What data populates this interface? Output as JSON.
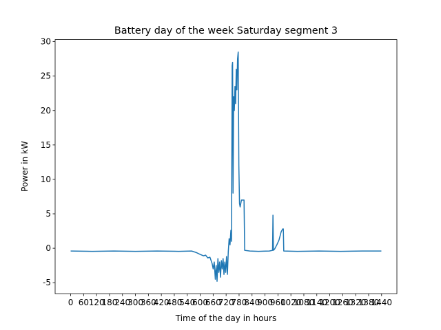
{
  "chart_data": {
    "type": "line",
    "title": "Battery day of the week Saturday segment 3",
    "x_label": "Time of the day in hours",
    "y_label": "Power in kW",
    "series": [
      {
        "color": "#1f77b4",
        "x": [
          0,
          100,
          200,
          300,
          400,
          500,
          560,
          580,
          600,
          615,
          625,
          635,
          645,
          655,
          660,
          665,
          670,
          674,
          678,
          682,
          686,
          690,
          694,
          698,
          702,
          706,
          710,
          714,
          718,
          722,
          726,
          730,
          734,
          738,
          742,
          745,
          748,
          750,
          752,
          755,
          758,
          761,
          764,
          767,
          770,
          773,
          776,
          779,
          782,
          785,
          788,
          791,
          800,
          803,
          806,
          830,
          870,
          920,
          935,
          937,
          939,
          945,
          955,
          965,
          975,
          982,
          985,
          987,
          1050,
          1150,
          1250,
          1350,
          1439
        ],
        "values": [
          -0.4,
          -0.45,
          -0.4,
          -0.45,
          -0.4,
          -0.45,
          -0.4,
          -0.6,
          -0.9,
          -1.1,
          -1.0,
          -1.4,
          -1.3,
          -2.2,
          -3.0,
          -2.0,
          -4.5,
          -2.5,
          -4.8,
          -1.5,
          -3.5,
          -2.0,
          -4.2,
          -1.8,
          -3.0,
          -1.5,
          -3.8,
          -2.0,
          -3.5,
          -1.2,
          -3.8,
          -0.5,
          1.4,
          0.5,
          2.6,
          1.0,
          26.5,
          27.0,
          8.0,
          22,
          20,
          23.5,
          21,
          26,
          23,
          27.5,
          28.5,
          12,
          6.5,
          6.0,
          6.5,
          7.0,
          7.0,
          7.0,
          -0.3,
          -0.4,
          -0.45,
          -0.4,
          -0.3,
          4.8,
          -0.3,
          -0.1,
          0.5,
          1.2,
          2.4,
          2.8,
          2.8,
          -0.4,
          -0.45,
          -0.4,
          -0.45,
          -0.4,
          -0.4
        ]
      }
    ],
    "xlim": [
      -71.95,
      1510.95
    ],
    "xticks": [
      0,
      60,
      120,
      180,
      240,
      300,
      360,
      420,
      480,
      540,
      600,
      660,
      720,
      780,
      840,
      900,
      960,
      1020,
      1080,
      1140,
      1200,
      1260,
      1320,
      1380,
      1440
    ],
    "ylim": [
      -6.6,
      30.3
    ],
    "yticks": [
      -5,
      0,
      5,
      10,
      15,
      20,
      25,
      30
    ]
  }
}
